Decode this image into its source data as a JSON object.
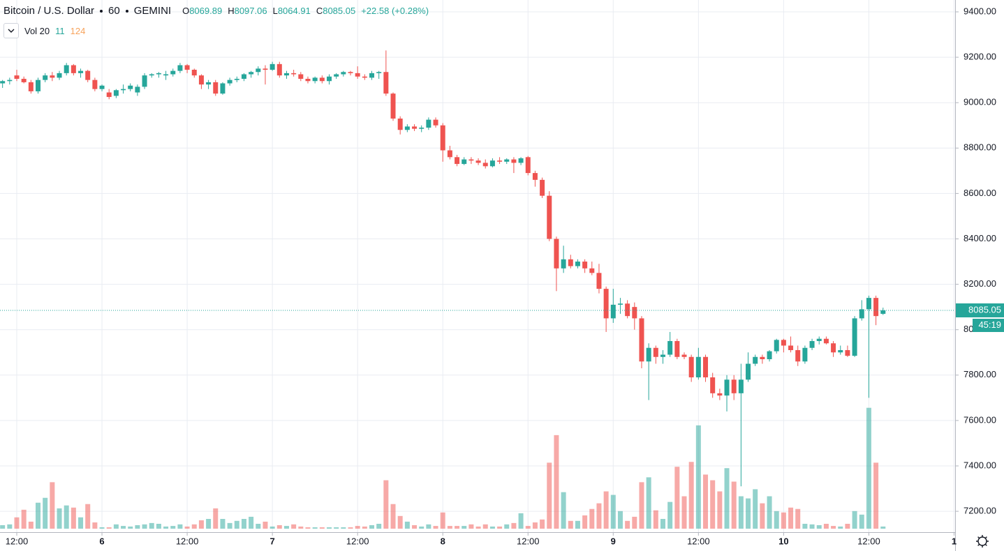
{
  "chart_data": {
    "type": "candlestick",
    "title": "Bitcoin / U.S. Dollar",
    "interval": "60",
    "exchange": "GEMINI",
    "ohlc_keys": [
      "O",
      "H",
      "L",
      "C"
    ],
    "change_label": "+22.58 (+0.28%)",
    "volume_indicator": "Vol 20",
    "volume_ma": 124,
    "countdown": "45:19",
    "up_color": "#26a69a",
    "down_color": "#ef5350",
    "grid": true,
    "xlim": [
      -0.36,
      134.15
    ],
    "xticks": [
      {
        "value": 2,
        "label": "12:00"
      },
      {
        "value": 14,
        "label": "6"
      },
      {
        "value": 26,
        "label": "12:00"
      },
      {
        "value": 38,
        "label": "7"
      },
      {
        "value": 50,
        "label": "12:00"
      },
      {
        "value": 62,
        "label": "8"
      },
      {
        "value": 74,
        "label": "12:00"
      },
      {
        "value": 86,
        "label": "9"
      },
      {
        "value": 98,
        "label": "12:00"
      },
      {
        "value": 110,
        "label": "10"
      },
      {
        "value": 122,
        "label": "12:00"
      },
      {
        "value": 134,
        "label": "1"
      }
    ],
    "ylim": [
      7123.5,
      9452.2
    ],
    "yticks": [
      {
        "value": 9400,
        "label": "9400.00"
      },
      {
        "value": 9200,
        "label": "9200.00"
      },
      {
        "value": 9000,
        "label": "9000.00"
      },
      {
        "value": 8800,
        "label": "8800.00"
      },
      {
        "value": 8600,
        "label": "8600.00"
      },
      {
        "value": 8400,
        "label": "8400.00"
      },
      {
        "value": 8200,
        "label": "8200.00"
      },
      {
        "value": 8000,
        "label": "8000.00"
      },
      {
        "value": 7800,
        "label": "7800.00"
      },
      {
        "value": 7600,
        "label": "7600.00"
      },
      {
        "value": 7400,
        "label": "7400.00"
      },
      {
        "value": 7200,
        "label": "7200.00"
      }
    ],
    "volume_lim": [
      0,
      700
    ],
    "open": [
      9085,
      9095,
      9120,
      9105,
      9090,
      9050,
      9100,
      9120,
      9110,
      9130,
      9165,
      9130,
      9140,
      9100,
      9060,
      9045,
      9030,
      9055,
      9060,
      9045,
      9070,
      9120,
      9125,
      9120,
      9125,
      9140,
      9165,
      9145,
      9120,
      9080,
      9090,
      9040,
      9085,
      9100,
      9105,
      9125,
      9135,
      9150,
      9145,
      9170,
      9120,
      9130,
      9125,
      9105,
      9095,
      9110,
      9095,
      9115,
      9125,
      9135,
      9130,
      9115,
      9110,
      9130,
      9135,
      9040,
      8930,
      8880,
      8895,
      8885,
      8890,
      8925,
      8900,
      8790,
      8760,
      8730,
      8750,
      8745,
      8735,
      8720,
      8745,
      8740,
      8750,
      8735,
      8760,
      8690,
      8660,
      8590,
      8400,
      8270,
      8310,
      8280,
      8300,
      8270,
      8250,
      8180,
      8050,
      8110,
      8115,
      8100,
      8050,
      7860,
      7920,
      7880,
      7890,
      7950,
      7890,
      7880,
      7790,
      7880,
      7790,
      7720,
      7710,
      7780,
      7720,
      7780,
      7850,
      7880,
      7870,
      7905,
      7955,
      7930,
      7910,
      7860,
      7920,
      7950,
      7960,
      7940,
      7900,
      7910,
      7885,
      8050,
      8090,
      8140,
      8069.89
    ],
    "high": [
      9100,
      9110,
      9145,
      9115,
      9100,
      9110,
      9130,
      9135,
      9140,
      9175,
      9170,
      9150,
      9145,
      9110,
      9080,
      9060,
      9060,
      9080,
      9085,
      9080,
      9130,
      9130,
      9135,
      9140,
      9150,
      9175,
      9170,
      9150,
      9125,
      9100,
      9100,
      9090,
      9110,
      9115,
      9130,
      9140,
      9160,
      9165,
      9180,
      9180,
      9140,
      9145,
      9135,
      9115,
      9115,
      9120,
      9125,
      9130,
      9140,
      9140,
      9160,
      9125,
      9140,
      9140,
      9230,
      9045,
      8940,
      8905,
      8905,
      8900,
      8935,
      8935,
      8910,
      8810,
      8770,
      8760,
      8760,
      8755,
      8750,
      8755,
      8760,
      8755,
      8760,
      8760,
      8765,
      8700,
      8670,
      8610,
      8410,
      8370,
      8330,
      8310,
      8310,
      8300,
      8290,
      8190,
      8180,
      8140,
      8130,
      8120,
      8060,
      7940,
      7930,
      7910,
      7990,
      7960,
      7900,
      7890,
      7920,
      7890,
      7810,
      7740,
      7800,
      7800,
      7850,
      7900,
      7890,
      7890,
      7910,
      7960,
      7960,
      7970,
      7930,
      7930,
      7960,
      7970,
      7970,
      7950,
      7930,
      7930,
      8060,
      8130,
      8150,
      8150,
      8097.06
    ],
    "low": [
      9065,
      9080,
      9095,
      9085,
      9040,
      9040,
      9090,
      9095,
      9100,
      9120,
      9120,
      9110,
      9090,
      9050,
      9050,
      9015,
      9020,
      9040,
      9050,
      9030,
      9060,
      9110,
      9110,
      9100,
      9115,
      9130,
      9130,
      9110,
      9060,
      9060,
      9030,
      9035,
      9075,
      9090,
      9095,
      9110,
      9120,
      9080,
      9140,
      9110,
      9105,
      9115,
      9095,
      9085,
      9085,
      9085,
      9080,
      9105,
      9115,
      9120,
      9105,
      9100,
      9100,
      9105,
      9030,
      8920,
      8860,
      8870,
      8875,
      8870,
      8880,
      8890,
      8740,
      8750,
      8720,
      8725,
      8730,
      8725,
      8710,
      8715,
      8730,
      8730,
      8690,
      8725,
      8680,
      8630,
      8580,
      8390,
      8170,
      8250,
      8270,
      8270,
      8250,
      8240,
      8160,
      7990,
      8030,
      8070,
      8050,
      8000,
      7830,
      7690,
      7850,
      7850,
      7880,
      7870,
      7870,
      7770,
      7780,
      7770,
      7700,
      7690,
      7640,
      7690,
      7310,
      7770,
      7840,
      7850,
      7860,
      7895,
      7900,
      7900,
      7840,
      7850,
      7910,
      7935,
      7935,
      7880,
      7890,
      7880,
      7880,
      8040,
      7700,
      8020,
      8064.91
    ],
    "close": [
      9095,
      9100,
      9105,
      9090,
      9050,
      9100,
      9120,
      9110,
      9130,
      9165,
      9130,
      9140,
      9100,
      9060,
      9075,
      9025,
      9055,
      9060,
      9075,
      9070,
      9120,
      9125,
      9130,
      9125,
      9140,
      9165,
      9145,
      9120,
      9080,
      9090,
      9040,
      9085,
      9100,
      9105,
      9125,
      9135,
      9150,
      9145,
      9170,
      9120,
      9130,
      9125,
      9105,
      9095,
      9110,
      9095,
      9115,
      9125,
      9135,
      9130,
      9115,
      9110,
      9130,
      9135,
      9040,
      8930,
      8880,
      8895,
      8885,
      8890,
      8925,
      8900,
      8790,
      8760,
      8730,
      8750,
      8745,
      8735,
      8720,
      8745,
      8740,
      8750,
      8735,
      8755,
      8690,
      8660,
      8590,
      8400,
      8270,
      8310,
      8280,
      8300,
      8270,
      8250,
      8180,
      8050,
      8110,
      8115,
      8060,
      8050,
      7860,
      7920,
      7880,
      7890,
      7950,
      7880,
      7880,
      7790,
      7880,
      7790,
      7720,
      7710,
      7780,
      7720,
      7780,
      7850,
      7880,
      7870,
      7905,
      7955,
      7930,
      7910,
      7860,
      7920,
      7950,
      7960,
      7940,
      7900,
      7910,
      7885,
      8050,
      8090,
      8140,
      8060,
      8085.05
    ],
    "volume": [
      18,
      22,
      58,
      97,
      36,
      133,
      158,
      238,
      104,
      119,
      108,
      58,
      126,
      32,
      7,
      7,
      22,
      14,
      11,
      18,
      22,
      29,
      25,
      11,
      14,
      22,
      11,
      22,
      43,
      50,
      104,
      50,
      29,
      40,
      50,
      61,
      25,
      36,
      11,
      18,
      14,
      22,
      11,
      7,
      7,
      7,
      7,
      7,
      7,
      7,
      14,
      11,
      18,
      25,
      248,
      126,
      65,
      36,
      18,
      11,
      22,
      14,
      83,
      14,
      14,
      14,
      22,
      11,
      22,
      11,
      11,
      22,
      29,
      79,
      14,
      32,
      47,
      338,
      479,
      187,
      40,
      40,
      68,
      101,
      130,
      191,
      173,
      90,
      40,
      61,
      238,
      263,
      94,
      50,
      137,
      317,
      166,
      342,
      529,
      277,
      248,
      191,
      310,
      241,
      166,
      155,
      202,
      130,
      166,
      90,
      83,
      108,
      101,
      25,
      22,
      18,
      25,
      14,
      11,
      25,
      90,
      72,
      619,
      338,
      11
    ]
  }
}
